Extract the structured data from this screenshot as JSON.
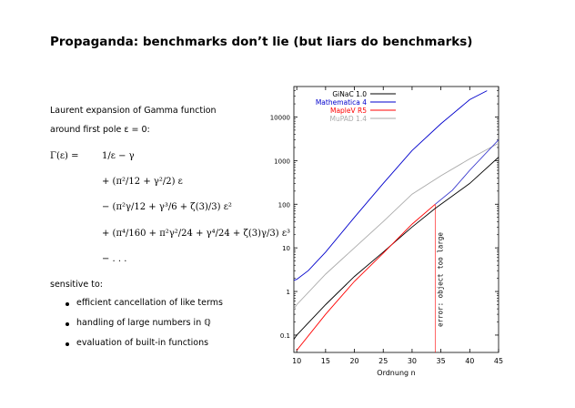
{
  "slide": {
    "title": "Propaganda: benchmarks don’t lie (but liars do benchmarks)",
    "intro_line1": "Laurent expansion of Gamma function",
    "intro_line2": "around first pole ε = 0:",
    "formula": {
      "lhs": "Γ(ε)  =",
      "line1": "1/ε − γ",
      "line2": "+ (π²/12 + γ²/2) ε",
      "line3": "− (π²γ/12 + γ³/6 + ζ(3)/3) ε²",
      "line4": "+ (π⁴/160 + π²γ²/24 + γ⁴/24 + ζ(3)γ/3) ε³",
      "line5": "− . . ."
    },
    "sensitive_label": "sensitive to:",
    "bullets": [
      "efficient cancellation of like terms",
      "handling of large numbers in ℚ",
      "evaluation of built-in functions"
    ]
  },
  "chart_data": {
    "type": "line",
    "xlabel": "Ordnung n",
    "ylabel": "",
    "y_scale": "log",
    "xlim": [
      9.5,
      45
    ],
    "ylim": [
      0.04,
      50000
    ],
    "x_ticks": [
      10,
      15,
      20,
      25,
      30,
      35,
      40,
      45
    ],
    "y_ticks": [
      0.1,
      1,
      10,
      100,
      1000,
      10000
    ],
    "y_tick_labels": [
      "0.1",
      "1",
      "10",
      "100",
      "1000",
      "10000"
    ],
    "legend_position": "top-left",
    "annotation": "error: object too large",
    "annotation_x": 34,
    "series": [
      {
        "name": "GiNaC 1.0",
        "color": "#000000",
        "x": [
          9.5,
          10,
          15,
          20,
          25,
          30,
          34,
          40,
          45
        ],
        "y": [
          0.08,
          0.1,
          0.5,
          2.2,
          8,
          30,
          80,
          300,
          1200
        ]
      },
      {
        "name": "Mathematica 4",
        "color": "#0000cc",
        "x": [
          9.5,
          10,
          12,
          15,
          20,
          25,
          30,
          35,
          40,
          43
        ],
        "y": [
          1.8,
          1.9,
          3,
          8,
          50,
          300,
          1700,
          7000,
          25000,
          40000
        ]
      },
      {
        "name": "MapleV R5",
        "color": "#ff0000",
        "x": [
          10,
          15,
          20,
          25,
          30,
          34
        ],
        "y": [
          0.045,
          0.3,
          1.7,
          7.5,
          35,
          100
        ]
      },
      {
        "name": "MuPAD 1.4",
        "color": "#aaaaaa",
        "x": [
          9.5,
          10,
          15,
          20,
          25,
          30,
          35,
          40,
          45
        ],
        "y": [
          0.4,
          0.5,
          2.5,
          10,
          40,
          170,
          450,
          1100,
          2500
        ]
      },
      {
        "name": "",
        "color": "#3333cc",
        "x": [
          34,
          37,
          40,
          45
        ],
        "y": [
          100,
          210,
          600,
          3000
        ]
      }
    ]
  }
}
